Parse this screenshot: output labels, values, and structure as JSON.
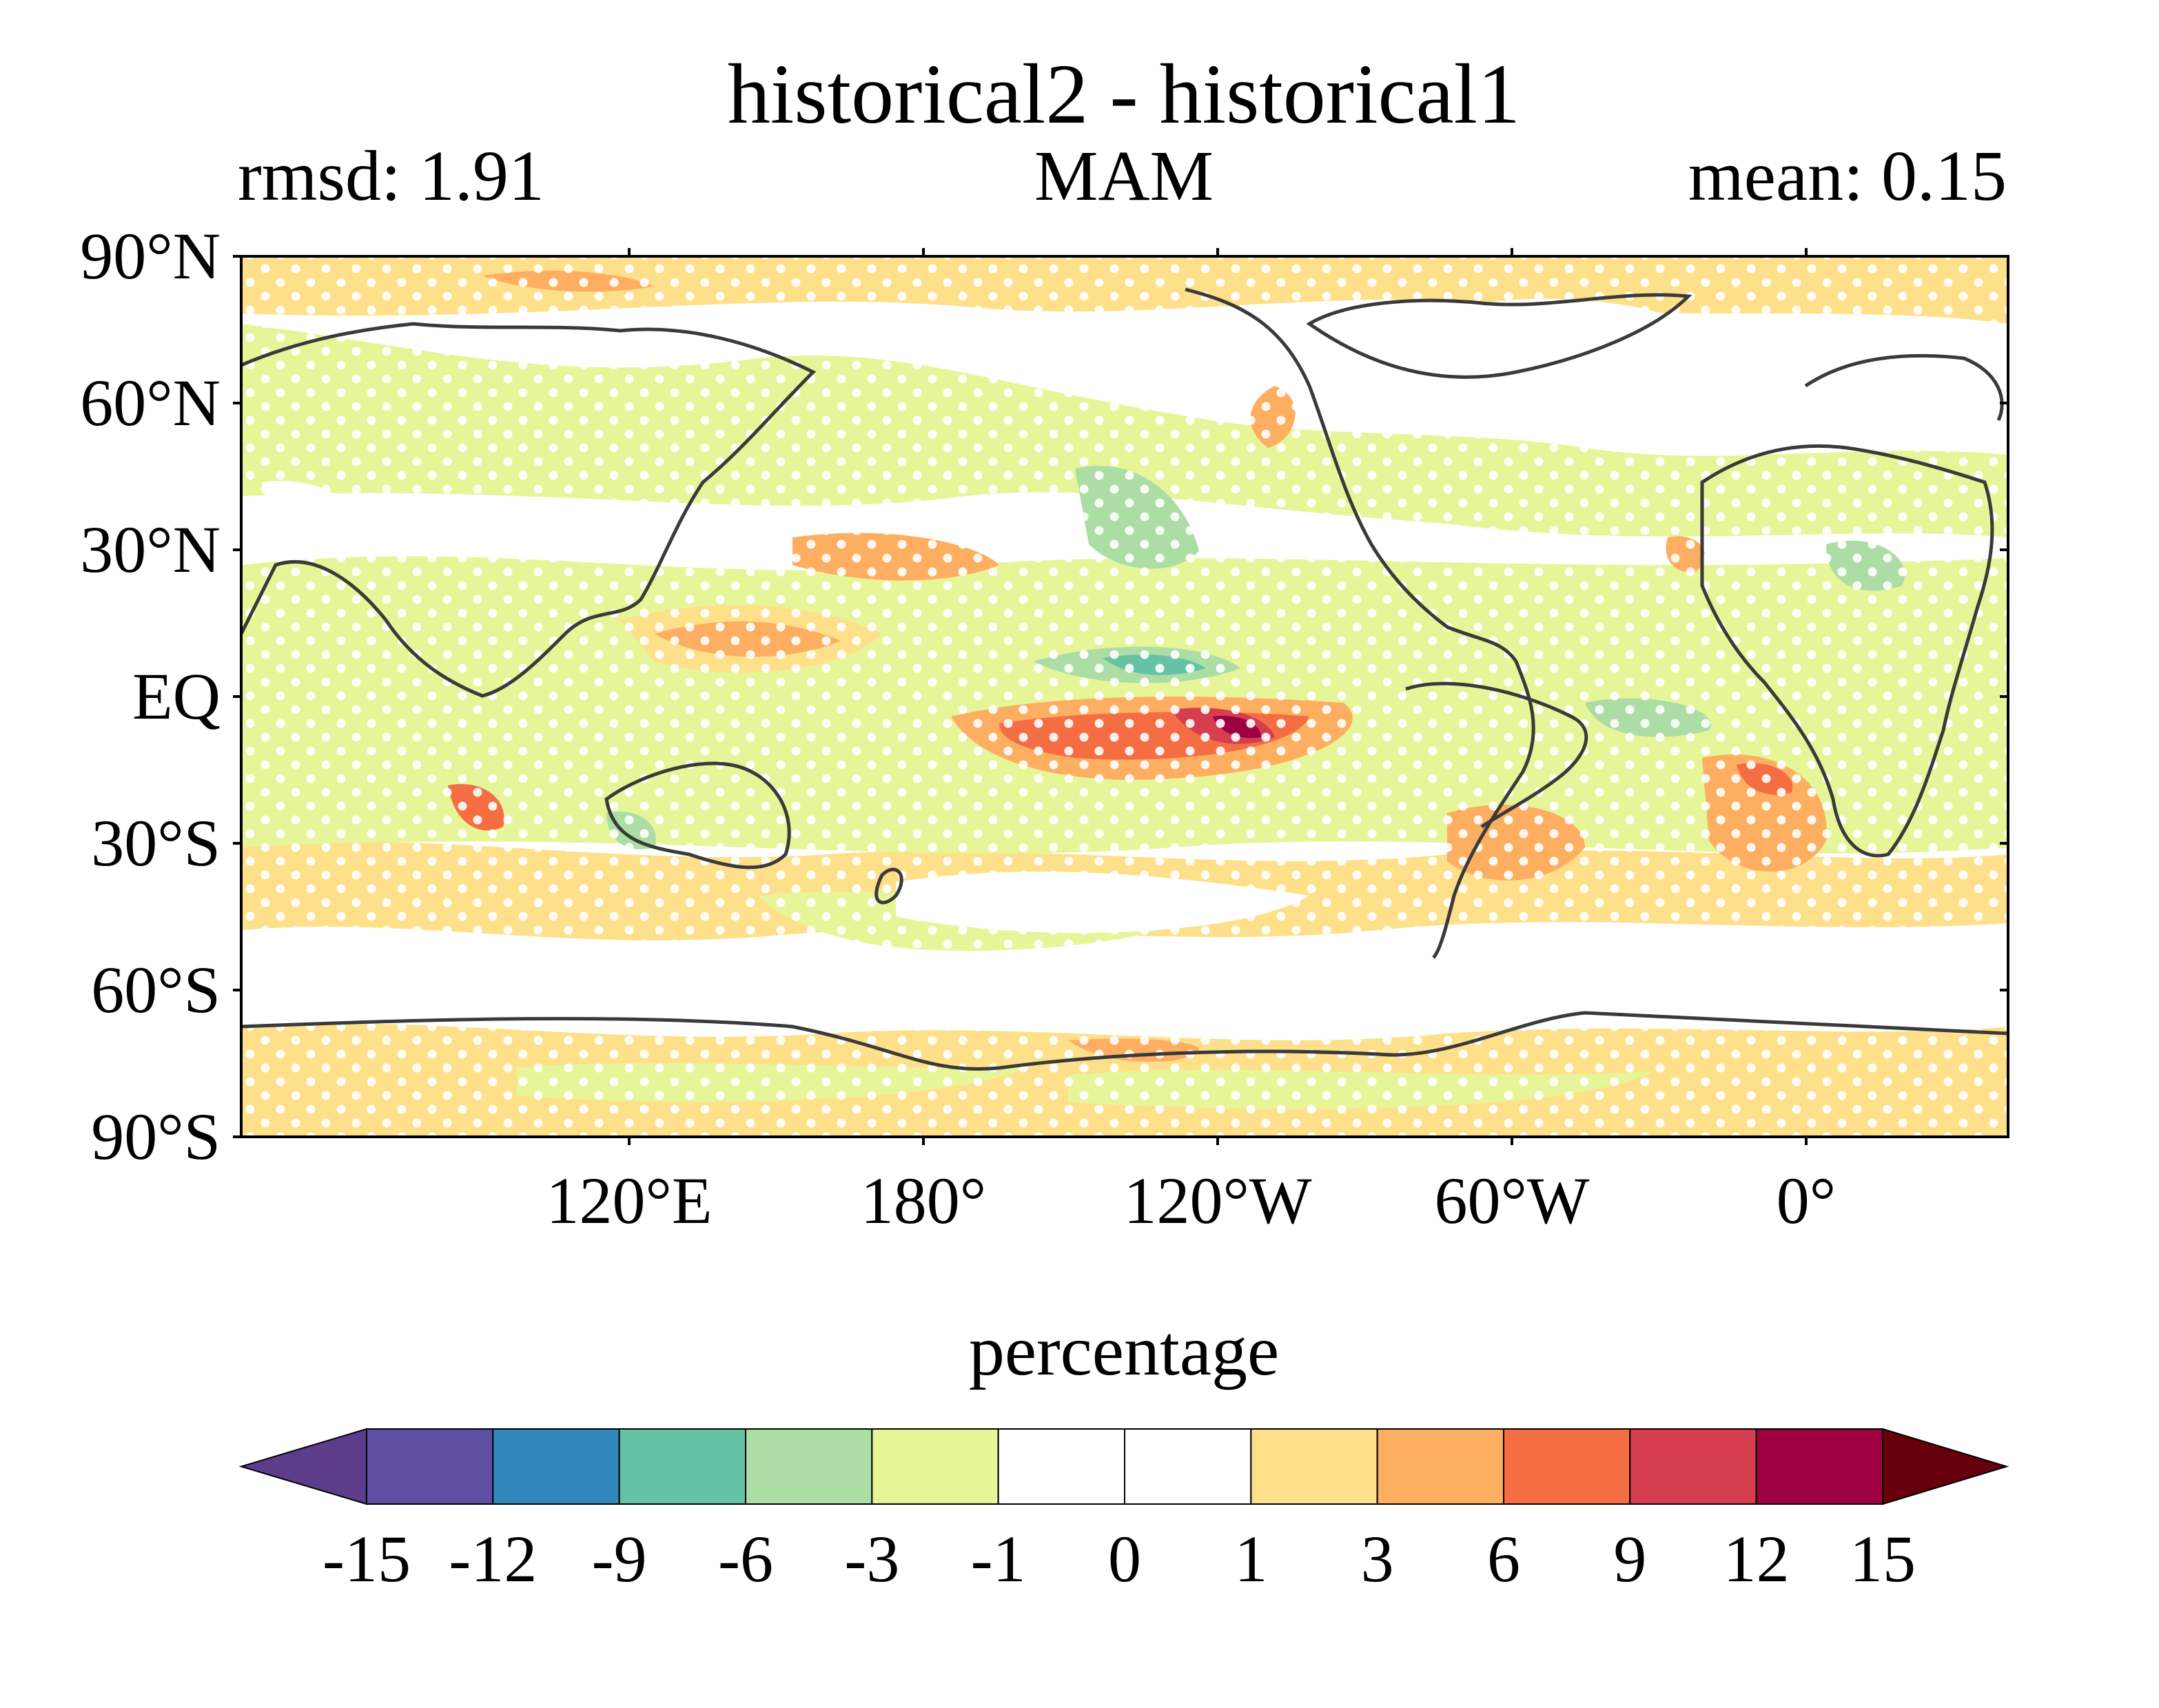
{
  "map": {
    "title": "historical2 - historical1",
    "left_label": "rmsd: 1.91",
    "center_label": "MAM",
    "right_label": "mean: 0.15",
    "lat_ticks": [
      "90°N",
      "60°N",
      "30°N",
      "EQ",
      "30°S",
      "60°S",
      "90°S"
    ],
    "lon_ticks": [
      "120°E",
      "180°",
      "120°W",
      "60°W",
      "0°"
    ],
    "projection": "equirectangular, centered near 150°W",
    "stippling": "white dots mark significant regions"
  },
  "colorbar": {
    "label": "percentage",
    "ticks": [
      "-15",
      "-12",
      "-9",
      "-6",
      "-3",
      "-1",
      "0",
      "1",
      "3",
      "6",
      "9",
      "12",
      "15"
    ],
    "colors": [
      "#5e3c8c",
      "#5e4fa2",
      "#3288bd",
      "#66c2a5",
      "#abdda4",
      "#e6f598",
      "#ffffff",
      "#ffffff",
      "#fee08b",
      "#fdae61",
      "#f46d43",
      "#d53e4f",
      "#9e0142",
      "#67000d"
    ],
    "extend": "both"
  }
}
